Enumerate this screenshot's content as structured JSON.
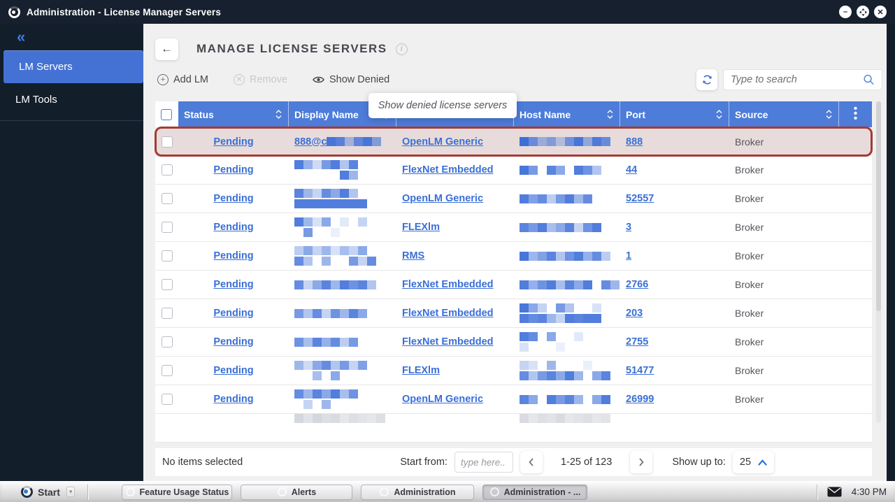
{
  "titlebar": {
    "title": "Administration - License Manager Servers"
  },
  "window_controls": {
    "minimize": "minimize",
    "maximize": "maximize",
    "close": "close"
  },
  "sidebar": {
    "collapse_icon": "«",
    "items": [
      {
        "label": "LM Servers",
        "active": true
      },
      {
        "label": "LM Tools",
        "active": false
      }
    ]
  },
  "page": {
    "title": "MANAGE LICENSE SERVERS"
  },
  "toolbar": {
    "add_label": "Add LM",
    "remove_label": "Remove",
    "show_denied_label": "Show Denied",
    "search_placeholder": "Type to search"
  },
  "tooltip": {
    "text": "Show denied license servers"
  },
  "table": {
    "columns": [
      {
        "label": "Status",
        "sortable": true
      },
      {
        "label": "Display Name",
        "sortable": true
      },
      {
        "label": "",
        "sortable": false
      },
      {
        "label": "Host Name",
        "sortable": true
      },
      {
        "label": "Port",
        "sortable": true
      },
      {
        "label": "Source",
        "sortable": true
      }
    ],
    "rows": [
      {
        "status": "Pending",
        "display_text": "888@c",
        "display_blur": [
          [
            0.95,
            0.85,
            0.4,
            0.8,
            0.95,
            0.6
          ]
        ],
        "type": "OpenLM Generic",
        "host_blur": [
          [
            1,
            0.75,
            0.45,
            0.6,
            0.3,
            0.7,
            0.95,
            0.5,
            0.9,
            0.75
          ]
        ],
        "port": "888",
        "source": "Broker",
        "highlighted": true
      },
      {
        "status": "Pending",
        "display_text": "",
        "display_blur": [
          [
            0.9,
            0.55,
            0.25,
            0.7,
            0.9,
            0.4,
            0.85
          ],
          [
            0,
            0,
            0,
            0,
            0,
            0.9,
            0.5
          ]
        ],
        "type": "FlexNet Embedded",
        "host_blur": [
          [
            0.95,
            0.7,
            0,
            0.85,
            0.6,
            0,
            0.9,
            0.75,
            0.4
          ]
        ],
        "port": "44",
        "source": "Broker",
        "highlighted": false
      },
      {
        "status": "Pending",
        "display_text": "",
        "display_blur": [
          [
            0.85,
            0.5,
            0.3,
            0.8,
            0.6,
            0.9,
            0.4
          ],
          [
            0.9,
            0.9,
            0.9,
            0.9,
            0.9,
            0.9,
            0.9,
            0.9
          ]
        ],
        "type": "OpenLM Generic",
        "host_blur": [
          [
            0.9,
            0.65,
            0.8,
            0.35,
            0.7,
            0.9,
            0.5,
            0.8
          ]
        ],
        "port": "52557",
        "source": "Broker",
        "highlighted": false
      },
      {
        "status": "Pending",
        "display_text": "",
        "display_blur": [
          [
            0.9,
            0.5,
            0.2,
            0.6,
            0,
            0.15,
            0,
            0.3
          ],
          [
            0,
            0.7,
            0,
            0,
            0.1
          ]
        ],
        "type": "FLEXlm",
        "host_blur": [
          [
            0.85,
            0.7,
            0.9,
            0.45,
            0.6,
            0.85,
            0.3,
            0.75,
            0.9
          ]
        ],
        "port": "3",
        "source": "Broker",
        "highlighted": false
      },
      {
        "status": "Pending",
        "display_text": "",
        "display_blur": [
          [
            0.35,
            0.6,
            0.3,
            0.5,
            0.2,
            0.45,
            0.3,
            0.6
          ],
          [
            0.8,
            0.4,
            0,
            0.5,
            0,
            0,
            0.7,
            0.3,
            0.8
          ]
        ],
        "type": "RMS",
        "host_blur": [
          [
            0.95,
            0.5,
            0.65,
            0.85,
            0.4,
            0.75,
            0.9,
            0.55,
            0.8,
            0.35
          ]
        ],
        "port": "1",
        "source": "Broker",
        "highlighted": false
      },
      {
        "status": "Pending",
        "display_text": "",
        "display_blur": [
          [
            0.8,
            0.3,
            0.6,
            0.85,
            0.5,
            0.9,
            0.75,
            0.85,
            0.4
          ]
        ],
        "type": "FlexNet Embedded",
        "host_blur": [
          [
            0.9,
            0.55,
            0.75,
            0.9,
            0.45,
            0.85,
            0.6,
            0.9,
            0,
            0.8,
            0.5
          ]
        ],
        "port": "2766",
        "source": "Broker",
        "highlighted": false
      },
      {
        "status": "Pending",
        "display_text": "",
        "display_blur": [
          [
            0.7,
            0.4,
            0.8,
            0.3,
            0.75,
            0.5,
            0.85,
            0.6
          ]
        ],
        "type": "FlexNet Embedded",
        "host_blur": [
          [
            0.95,
            0.6,
            0.3,
            0,
            0.7,
            0.4,
            0,
            0,
            0.2
          ],
          [
            0.9,
            0.8,
            0.85,
            0.5,
            0.3,
            0.9,
            0.85,
            0.9,
            0.9
          ]
        ],
        "port": "203",
        "source": "Broker",
        "highlighted": false
      },
      {
        "status": "Pending",
        "display_text": "",
        "display_blur": [
          [
            0.75,
            0.45,
            0.85,
            0.55,
            0.8,
            0.35,
            0.7
          ]
        ],
        "type": "FlexNet Embedded",
        "host_blur": [
          [
            0.9,
            0.8,
            0,
            0.6,
            0,
            0,
            0.15
          ],
          [
            0.2,
            0,
            0,
            0,
            0.1
          ]
        ],
        "port": "2755",
        "source": "Broker",
        "highlighted": false
      },
      {
        "status": "Pending",
        "display_text": "",
        "display_blur": [
          [
            0.5,
            0.25,
            0.6,
            0.8,
            0.4,
            0.7,
            0.3,
            0.65
          ],
          [
            0,
            0,
            0.45,
            0,
            0.6
          ]
        ],
        "type": "FLEXlm",
        "host_blur": [
          [
            0.3,
            0.2,
            0,
            0.5,
            0,
            0,
            0,
            0.1
          ],
          [
            0.8,
            0.4,
            0.7,
            0.85,
            0.6,
            0.9,
            0.5,
            0,
            0.6,
            0.85
          ]
        ],
        "port": "51477",
        "source": "Broker",
        "highlighted": false
      },
      {
        "status": "Pending",
        "display_text": "",
        "display_blur": [
          [
            0.8,
            0.5,
            0.85,
            0.6,
            0.9,
            0.45,
            0.75
          ],
          [
            0,
            0.3,
            0,
            0.5
          ]
        ],
        "type": "OpenLM Generic",
        "host_blur": [
          [
            0.85,
            0.6,
            0,
            0.9,
            0.7,
            0.85,
            0.5,
            0,
            0.6,
            0.9
          ]
        ],
        "port": "26999",
        "source": "Broker",
        "highlighted": false
      }
    ],
    "partial_row": {
      "display_blur": [
        [
          0.5,
          0.35,
          0.5,
          0.4,
          0.45,
          0.3,
          0.4,
          0.35,
          0.3,
          0.4
        ]
      ],
      "host_blur": [
        [
          0.45,
          0.3,
          0.4,
          0.35,
          0.45,
          0.3,
          0.35,
          0.4,
          0.3,
          0.35
        ]
      ]
    }
  },
  "footer": {
    "selection_text": "No items selected",
    "start_from_label": "Start from:",
    "start_from_placeholder": "type here..",
    "range_text": "1-25 of 123",
    "show_up_to_label": "Show up to:",
    "page_size": "25"
  },
  "taskbar": {
    "start_label": "Start",
    "buttons": [
      {
        "label": "Feature Usage Status",
        "active": false
      },
      {
        "label": "Alerts",
        "active": false
      },
      {
        "label": "Administration",
        "active": false
      },
      {
        "label": "Administration - ...",
        "active": true
      }
    ],
    "time": "4:30 PM"
  },
  "colors": {
    "accent_blue": "#3e6fd8",
    "header_blue": "#4d7cd9",
    "sidebar_dark": "#131e2b",
    "highlight_border": "#a63a33",
    "highlight_bg": "#e7dcdb"
  }
}
